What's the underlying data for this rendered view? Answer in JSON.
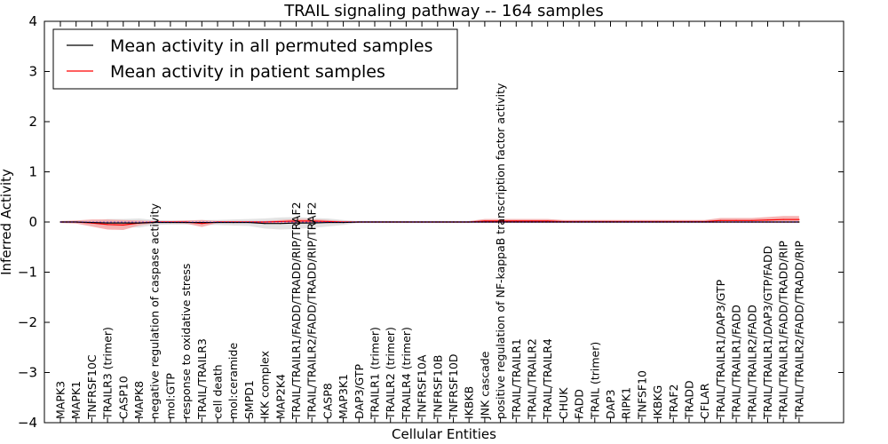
{
  "chart_data": {
    "type": "line",
    "title": "TRAIL signaling pathway -- 164 samples",
    "xlabel": "Cellular Entities",
    "ylabel": "Inferred Activity",
    "ylim": [
      -4,
      4
    ],
    "yticks": [
      "−4",
      "−3",
      "−2",
      "−1",
      "0",
      "1",
      "2",
      "3",
      "4"
    ],
    "grid": false,
    "legend_position": "top-left",
    "categories": [
      "MAPK3",
      "MAPK1",
      "TNFRSF10C",
      "TRAILR3 (trimer)",
      "CASP10",
      "MAPK8",
      "negative regulation of caspase activity",
      "mol:GTP",
      "response to oxidative stress",
      "TRAIL/TRAILR3",
      "cell death",
      "mol:ceramide",
      "SMPD1",
      "IKK complex",
      "MAP2K4",
      "TRAIL/TRAILR1/FADD/TRADD/RIP/TRAF2",
      "TRAIL/TRAILR2/FADD/TRADD/RIP/TRAF2",
      "CASP8",
      "MAP3K1",
      "DAP3/GTP",
      "TRAILR1 (trimer)",
      "TRAILR2 (trimer)",
      "TRAILR4 (trimer)",
      "TNFRSF10A",
      "TNFRSF10B",
      "TNFRSF10D",
      "IKBKB",
      "JNK cascade",
      "positive regulation of NF-kappaB transcription factor activity",
      "TRAIL/TRAILR1",
      "TRAIL/TRAILR2",
      "TRAIL/TRAILR4",
      "CHUK",
      "FADD",
      "TRAIL (trimer)",
      "DAP3",
      "RIPK1",
      "TNFSF10",
      "IKBKG",
      "TRAF2",
      "TRADD",
      "CFLAR",
      "TRAIL/TRAILR1/DAP3/GTP",
      "TRAIL/TRAILR1/FADD",
      "TRAIL/TRAILR2/FADD",
      "TRAIL/TRAILR1/DAP3/GTP/FADD",
      "TRAIL/TRAILR1/FADD/TRADD/RIP",
      "TRAIL/TRAILR2/FADD/TRADD/RIP"
    ],
    "series": [
      {
        "name": "Mean activity in all permuted samples",
        "color": "#000000",
        "band_color": "#c8c8c8",
        "values": [
          0,
          0,
          -0.01,
          -0.02,
          -0.02,
          -0.02,
          -0.01,
          -0.01,
          -0.01,
          -0.01,
          -0.01,
          -0.01,
          -0.01,
          -0.03,
          -0.03,
          -0.02,
          -0.02,
          -0.01,
          -0.01,
          0,
          0,
          0,
          0,
          0,
          0,
          0,
          0,
          0,
          0,
          0,
          0,
          0,
          0,
          0,
          0,
          0,
          0,
          0,
          0,
          0,
          0,
          0,
          0,
          0,
          0,
          0,
          0,
          0
        ],
        "band": [
          0.02,
          0.02,
          0.03,
          0.08,
          0.08,
          0.09,
          0.05,
          0.04,
          0.04,
          0.05,
          0.05,
          0.06,
          0.07,
          0.1,
          0.12,
          0.12,
          0.1,
          0.08,
          0.05,
          0.01,
          0.01,
          0.01,
          0.01,
          0.01,
          0.01,
          0.01,
          0.01,
          0.01,
          0.01,
          0.01,
          0.01,
          0.01,
          0.01,
          0.01,
          0.01,
          0.01,
          0.01,
          0.01,
          0.01,
          0.01,
          0.01,
          0.01,
          0.01,
          0.01,
          0.01,
          0.01,
          0.01,
          0.01
        ]
      },
      {
        "name": "Mean activity in patient samples",
        "color": "#ff0000",
        "band_color": "#f4a0a0",
        "values": [
          0,
          0,
          -0.02,
          -0.05,
          -0.06,
          -0.02,
          0,
          0,
          0,
          -0.03,
          0,
          0,
          0,
          0,
          0.01,
          0.02,
          0.02,
          0.01,
          0,
          0,
          0,
          0,
          0,
          0,
          0,
          0,
          0,
          0.02,
          0.02,
          0.02,
          0.02,
          0.02,
          0.01,
          0.01,
          0.01,
          0.01,
          0.01,
          0.01,
          0.01,
          0.01,
          0.01,
          0.01,
          0.03,
          0.03,
          0.03,
          0.04,
          0.05,
          0.05
        ],
        "band": [
          0.02,
          0.03,
          0.07,
          0.1,
          0.1,
          0.05,
          0.02,
          0.02,
          0.03,
          0.07,
          0.02,
          0.02,
          0.02,
          0.02,
          0.03,
          0.04,
          0.04,
          0.03,
          0.02,
          0.02,
          0.02,
          0.02,
          0.02,
          0.02,
          0.02,
          0.02,
          0.02,
          0.04,
          0.04,
          0.04,
          0.04,
          0.04,
          0.03,
          0.03,
          0.03,
          0.03,
          0.03,
          0.03,
          0.03,
          0.03,
          0.03,
          0.03,
          0.05,
          0.05,
          0.05,
          0.06,
          0.07,
          0.07
        ]
      }
    ]
  }
}
